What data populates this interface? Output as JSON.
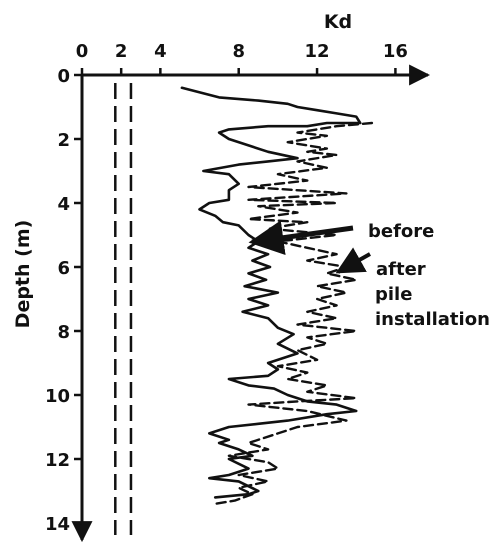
{
  "chart_data": {
    "type": "line",
    "xlabel": "Kd",
    "ylabel": "Depth (m)",
    "xlim": [
      0,
      17
    ],
    "ylim": [
      0,
      14
    ],
    "x_axis_position": "top",
    "y_axis_inverted": true,
    "x_ticks": [
      "0",
      "2",
      "4",
      "8",
      "12",
      "16"
    ],
    "y_ticks": [
      "0",
      "2",
      "4",
      "6",
      "8",
      "10",
      "12",
      "14"
    ],
    "grid": false,
    "legend": "none",
    "annotations": [
      "before",
      "after",
      "pile",
      "installation"
    ],
    "reference_lines": [
      {
        "x": 1.7,
        "style": "dashed"
      },
      {
        "x": 2.5,
        "style": "dashed"
      }
    ],
    "series": [
      {
        "style": "solid",
        "points": [
          [
            5.1,
            0.4
          ],
          [
            7.0,
            0.7
          ],
          [
            9.0,
            0.8
          ],
          [
            10.5,
            0.9
          ],
          [
            11.0,
            1.0
          ],
          [
            12.0,
            1.1
          ],
          [
            13.0,
            1.2
          ],
          [
            14.0,
            1.3
          ],
          [
            14.2,
            1.5
          ],
          [
            12.5,
            1.5
          ],
          [
            11.5,
            1.6
          ],
          [
            9.5,
            1.6
          ],
          [
            7.5,
            1.7
          ],
          [
            7.0,
            1.8
          ],
          [
            7.5,
            2.0
          ],
          [
            8.5,
            2.2
          ],
          [
            9.5,
            2.4
          ],
          [
            11.0,
            2.6
          ],
          [
            9.5,
            2.7
          ],
          [
            8.0,
            2.8
          ],
          [
            6.2,
            3.0
          ],
          [
            7.5,
            3.1
          ],
          [
            8.0,
            3.4
          ],
          [
            7.5,
            3.6
          ],
          [
            7.5,
            3.9
          ],
          [
            6.5,
            4.0
          ],
          [
            6.0,
            4.2
          ],
          [
            6.8,
            4.4
          ],
          [
            7.2,
            4.6
          ],
          [
            8.0,
            4.7
          ],
          [
            8.5,
            5.0
          ],
          [
            9.0,
            5.2
          ],
          [
            8.5,
            5.4
          ],
          [
            9.5,
            5.6
          ],
          [
            8.7,
            5.8
          ],
          [
            9.6,
            6.0
          ],
          [
            8.5,
            6.2
          ],
          [
            9.4,
            6.4
          ],
          [
            8.3,
            6.6
          ],
          [
            10.0,
            6.8
          ],
          [
            8.5,
            7.0
          ],
          [
            9.5,
            7.2
          ],
          [
            8.2,
            7.4
          ],
          [
            9.5,
            7.6
          ],
          [
            10.0,
            7.9
          ],
          [
            10.8,
            8.1
          ],
          [
            10.0,
            8.4
          ],
          [
            11.0,
            8.7
          ],
          [
            9.5,
            9.0
          ],
          [
            10.0,
            9.2
          ],
          [
            9.5,
            9.4
          ],
          [
            7.5,
            9.5
          ],
          [
            8.5,
            9.7
          ],
          [
            9.8,
            9.8
          ],
          [
            10.5,
            10.0
          ],
          [
            11.5,
            10.2
          ],
          [
            13.0,
            10.3
          ],
          [
            14.0,
            10.5
          ],
          [
            12.5,
            10.6
          ],
          [
            10.5,
            10.8
          ],
          [
            9.0,
            10.9
          ],
          [
            7.5,
            11.0
          ],
          [
            6.5,
            11.2
          ],
          [
            7.5,
            11.4
          ],
          [
            7.0,
            11.5
          ],
          [
            8.0,
            11.7
          ],
          [
            8.7,
            11.9
          ],
          [
            7.5,
            12.0
          ],
          [
            8.5,
            12.3
          ],
          [
            7.5,
            12.5
          ],
          [
            6.5,
            12.6
          ],
          [
            8.0,
            12.7
          ],
          [
            9.0,
            13.0
          ],
          [
            8.5,
            13.1
          ],
          [
            6.8,
            13.2
          ]
        ]
      },
      {
        "style": "dashed",
        "points": [
          [
            14.8,
            1.5
          ],
          [
            13.0,
            1.6
          ],
          [
            11.0,
            1.8
          ],
          [
            12.5,
            1.9
          ],
          [
            10.5,
            2.1
          ],
          [
            12.5,
            2.3
          ],
          [
            11.5,
            2.4
          ],
          [
            13.0,
            2.5
          ],
          [
            11.0,
            2.7
          ],
          [
            12.5,
            2.9
          ],
          [
            10.0,
            3.1
          ],
          [
            11.5,
            3.3
          ],
          [
            8.5,
            3.5
          ],
          [
            13.5,
            3.7
          ],
          [
            8.5,
            3.9
          ],
          [
            13.0,
            4.0
          ],
          [
            9.0,
            4.1
          ],
          [
            11.0,
            4.3
          ],
          [
            8.5,
            4.5
          ],
          [
            11.5,
            4.6
          ],
          [
            9.5,
            4.8
          ],
          [
            13.0,
            5.0
          ],
          [
            10.0,
            5.2
          ],
          [
            11.5,
            5.4
          ],
          [
            13.0,
            5.6
          ],
          [
            11.5,
            5.8
          ],
          [
            13.5,
            6.0
          ],
          [
            12.5,
            6.2
          ],
          [
            14.0,
            6.4
          ],
          [
            12.0,
            6.6
          ],
          [
            13.5,
            6.8
          ],
          [
            12.0,
            7.0
          ],
          [
            13.0,
            7.2
          ],
          [
            11.5,
            7.4
          ],
          [
            13.0,
            7.6
          ],
          [
            11.0,
            7.8
          ],
          [
            14.0,
            8.0
          ],
          [
            11.5,
            8.2
          ],
          [
            12.5,
            8.4
          ],
          [
            11.0,
            8.6
          ],
          [
            12.0,
            8.9
          ],
          [
            10.0,
            9.1
          ],
          [
            11.5,
            9.3
          ],
          [
            10.5,
            9.5
          ],
          [
            12.5,
            9.7
          ],
          [
            11.5,
            9.9
          ],
          [
            14.0,
            10.1
          ],
          [
            11.0,
            10.2
          ],
          [
            8.5,
            10.3
          ],
          [
            11.5,
            10.5
          ],
          [
            13.5,
            10.8
          ],
          [
            11.0,
            11.0
          ],
          [
            10.0,
            11.2
          ],
          [
            8.5,
            11.5
          ],
          [
            9.5,
            11.7
          ],
          [
            7.5,
            11.9
          ],
          [
            9.5,
            12.1
          ],
          [
            10.0,
            12.3
          ],
          [
            8.0,
            12.5
          ],
          [
            9.5,
            12.7
          ],
          [
            8.0,
            12.9
          ],
          [
            8.7,
            13.1
          ],
          [
            7.8,
            13.3
          ],
          [
            6.8,
            13.4
          ]
        ]
      }
    ]
  }
}
